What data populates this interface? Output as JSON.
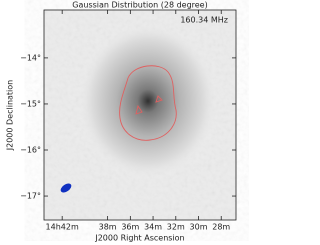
{
  "chart_data": {
    "type": "image",
    "title": "Gaussian Distribution (28 degree)",
    "annotation": "160.34 MHz",
    "x_label": "J2000 Right Ascension",
    "y_label": "J2000 Declination",
    "xlim": [
      43.6,
      26.7
    ],
    "xticks": [
      {
        "value": 42,
        "label": "14h42m"
      },
      {
        "value": 38,
        "label": "38m"
      },
      {
        "value": 36,
        "label": "36m"
      },
      {
        "value": 34,
        "label": "34m"
      },
      {
        "value": 32,
        "label": "32m"
      },
      {
        "value": 30,
        "label": "30m"
      },
      {
        "value": 28,
        "label": "28m"
      }
    ],
    "ylim": [
      -17.52,
      -12.96
    ],
    "yticks": [
      {
        "value": -14,
        "label": "−14°"
      },
      {
        "value": -15,
        "label": "−15°"
      },
      {
        "value": -16,
        "label": "−16°"
      },
      {
        "value": -17,
        "label": "−17°"
      }
    ],
    "contour_color": "#e06060",
    "beam_color": "#1030c0"
  }
}
